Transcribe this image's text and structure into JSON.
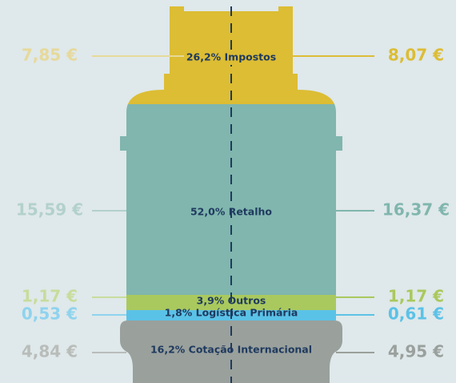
{
  "segments": [
    {
      "label": "26,2% Impostos",
      "left": "7,85 €",
      "right": "8,07 €",
      "color": "#dcbd34",
      "faded": "#e6d99b"
    },
    {
      "label": "52,0% Retalho",
      "left": "15,59 €",
      "right": "16,37 €",
      "color": "#80b6ae",
      "faded": "#b3d1cc"
    },
    {
      "label": "3,9% Outros",
      "left": "1,17 €",
      "right": "1,17 €",
      "color": "#a9c95e",
      "faded": "#c8dc9c"
    },
    {
      "label": "1,8% Logística Primária",
      "left": "0,53 €",
      "right": "0,61 €",
      "color": "#5bc2e7",
      "faded": "#8fd3ee"
    },
    {
      "label": "16,2% Cotação Internacional",
      "left": "4,84 €",
      "right": "4,95 €",
      "color": "#9aa09c",
      "faded": "#b9bdba"
    }
  ]
}
